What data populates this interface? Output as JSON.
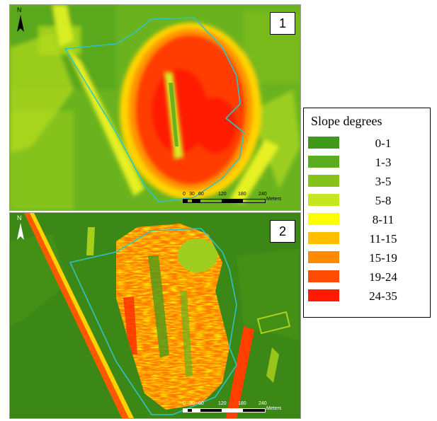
{
  "panels": [
    {
      "label": "1",
      "north": "N",
      "scale": {
        "ticks": [
          "0",
          "30",
          "60",
          "120",
          "180",
          "240"
        ],
        "unit": "Meters"
      }
    },
    {
      "label": "2",
      "north": "N",
      "scale": {
        "ticks": [
          "0",
          "30",
          "60",
          "120",
          "180",
          "240"
        ],
        "unit": "Meters"
      }
    }
  ],
  "legend": {
    "title": "Slope degrees",
    "items": [
      {
        "label": "0-1",
        "color": "#3f9a1c"
      },
      {
        "label": "1-3",
        "color": "#5bac1f"
      },
      {
        "label": "3-5",
        "color": "#86c21c"
      },
      {
        "label": "5-8",
        "color": "#c8e61f"
      },
      {
        "label": "8-11",
        "color": "#ffff00"
      },
      {
        "label": "11-15",
        "color": "#ffbf00"
      },
      {
        "label": "15-19",
        "color": "#ff8a00"
      },
      {
        "label": "19-24",
        "color": "#ff4d00"
      },
      {
        "label": "24-35",
        "color": "#ff1a00"
      }
    ]
  },
  "colors": {
    "boundary": "#2fc4c4"
  }
}
